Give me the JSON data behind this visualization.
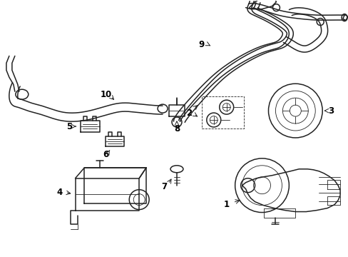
{
  "background_color": "#ffffff",
  "line_color": "#222222",
  "lw": 1.1,
  "tlw": 0.6,
  "fig_width": 4.89,
  "fig_height": 3.6,
  "dpi": 100
}
